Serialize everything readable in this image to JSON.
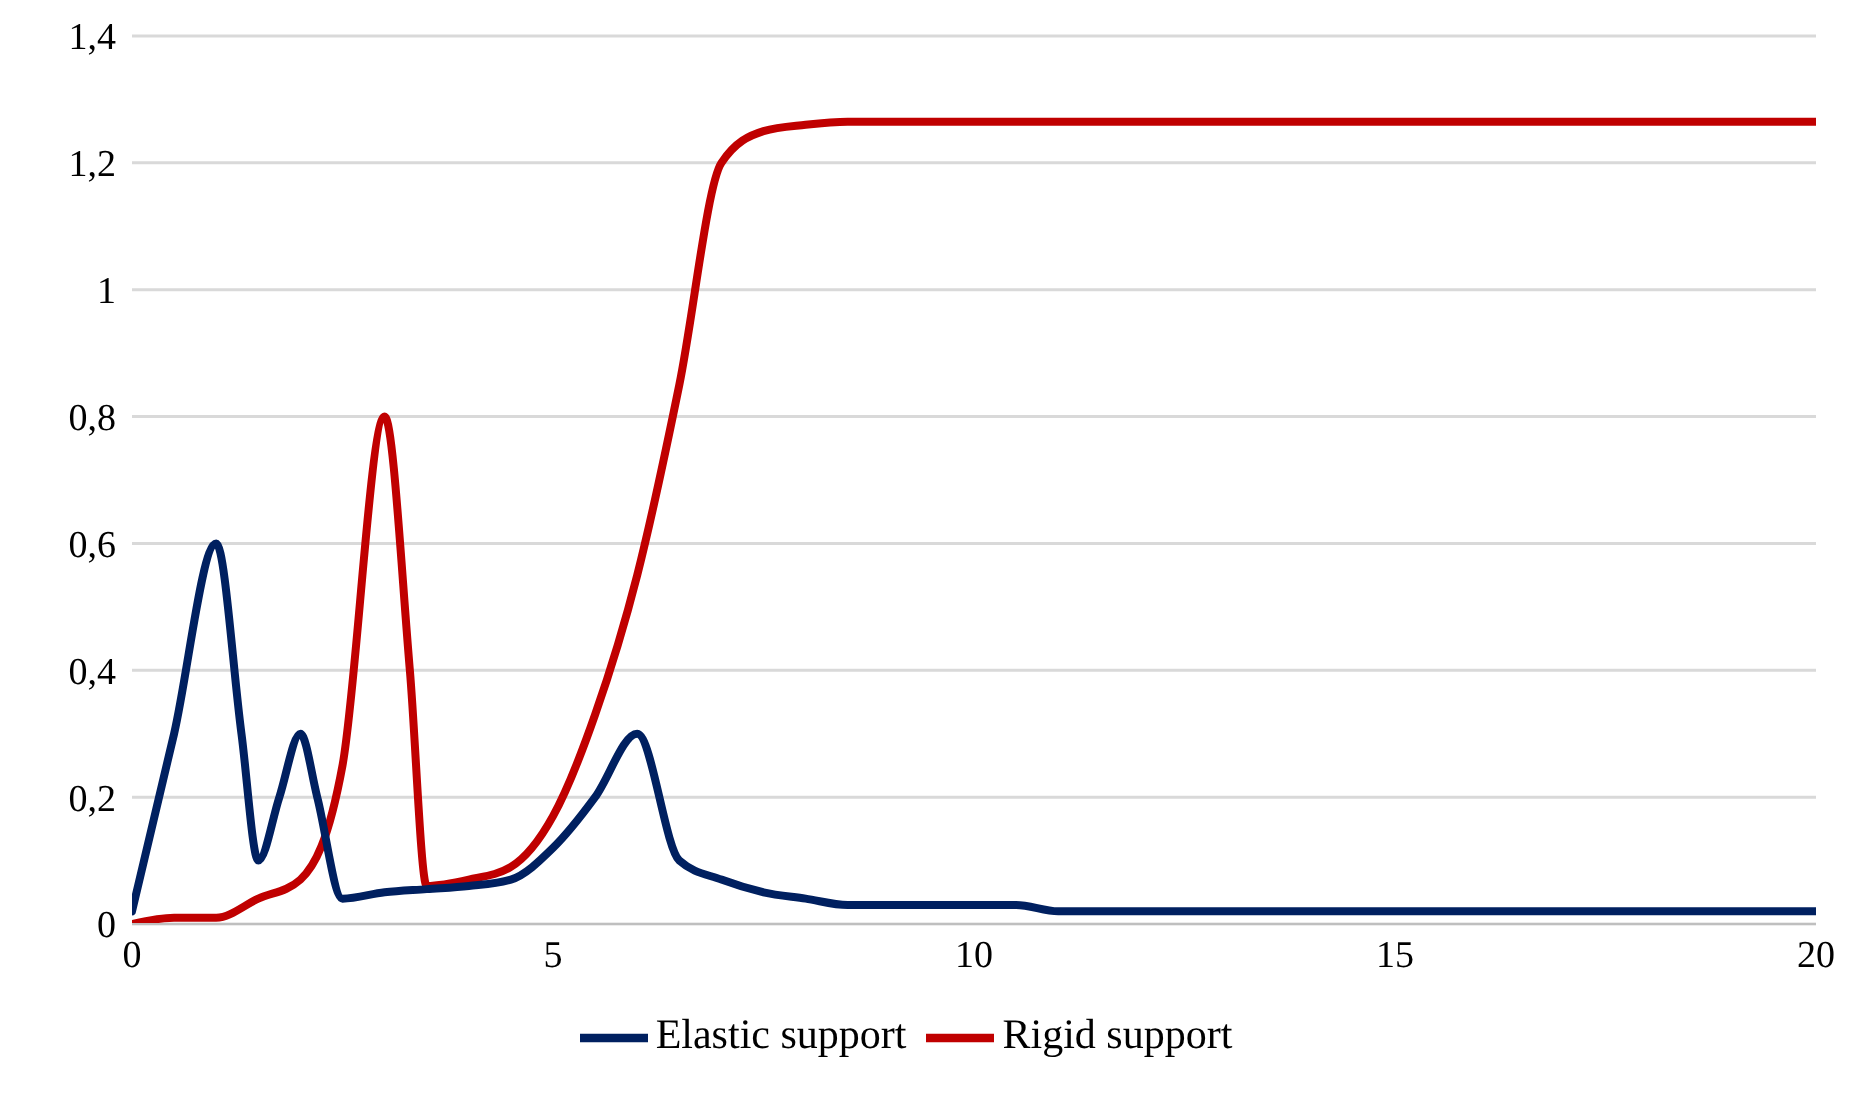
{
  "chart_data": {
    "type": "line",
    "xlim": [
      0,
      20
    ],
    "xticks": [
      0,
      5,
      10,
      15,
      20
    ],
    "ylim": [
      0,
      1.4
    ],
    "yticks": [
      0,
      {
        "value": 0.2,
        "label": "0,2"
      },
      {
        "value": 0.4,
        "label": "0,4"
      },
      {
        "value": 0.6,
        "label": "0,6"
      },
      {
        "value": 0.8,
        "label": "0,8"
      },
      1,
      {
        "value": 1.2,
        "label": "1,2"
      },
      {
        "value": 1.4,
        "label": "1,4"
      }
    ],
    "grid": "y",
    "legend": "bottom",
    "marker": "none",
    "line_style": "solid",
    "series": [
      {
        "name": "Rigid support",
        "color": "#c00000",
        "x": [
          0,
          0.5,
          1,
          1.5,
          2,
          2.5,
          3,
          3.3,
          3.5,
          4,
          4.5,
          5,
          5.5,
          6,
          6.5,
          7,
          7.5,
          8,
          8.5,
          10,
          20
        ],
        "values": [
          0,
          0.01,
          0.01,
          0.04,
          0.07,
          0.25,
          0.8,
          0.4,
          0.06,
          0.07,
          0.09,
          0.17,
          0.33,
          0.55,
          0.85,
          1.2,
          1.25,
          1.26,
          1.265,
          1.265,
          1.265
        ]
      },
      {
        "name": "Elastic support",
        "color": "#002060",
        "x": [
          0,
          0.5,
          1,
          1.3,
          1.5,
          1.75,
          2,
          2.2,
          2.5,
          3,
          3.5,
          4,
          4.5,
          5,
          5.5,
          6,
          6.5,
          7,
          7.5,
          8,
          8.5,
          10,
          10.5,
          11,
          20
        ],
        "values": [
          0.02,
          0.3,
          0.6,
          0.3,
          0.1,
          0.2,
          0.3,
          0.2,
          0.04,
          0.05,
          0.055,
          0.06,
          0.07,
          0.12,
          0.2,
          0.3,
          0.1,
          0.07,
          0.05,
          0.04,
          0.03,
          0.03,
          0.03,
          0.02,
          0.02
        ]
      }
    ]
  }
}
